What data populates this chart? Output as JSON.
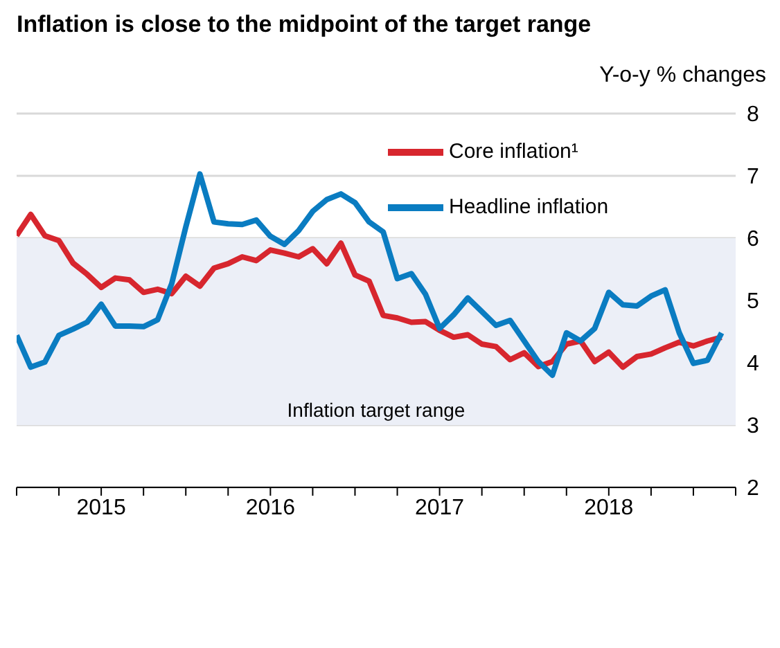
{
  "chart_data": {
    "type": "line",
    "title": "Inflation is close to the midpoint of the target range",
    "ylabel": "Y-o-y % changes",
    "x": [
      "2015-01",
      "2015-02",
      "2015-03",
      "2015-04",
      "2015-05",
      "2015-06",
      "2015-07",
      "2015-08",
      "2015-09",
      "2015-10",
      "2015-11",
      "2015-12",
      "2016-01",
      "2016-02",
      "2016-03",
      "2016-04",
      "2016-05",
      "2016-06",
      "2016-07",
      "2016-08",
      "2016-09",
      "2016-10",
      "2016-11",
      "2016-12",
      "2017-01",
      "2017-02",
      "2017-03",
      "2017-04",
      "2017-05",
      "2017-06",
      "2017-07",
      "2017-08",
      "2017-09",
      "2017-10",
      "2017-11",
      "2017-12",
      "2018-01",
      "2018-02",
      "2018-03",
      "2018-04",
      "2018-05",
      "2018-06",
      "2018-07",
      "2018-08",
      "2018-09",
      "2018-10",
      "2018-11",
      "2018-12",
      "2019-01",
      "2019-02",
      "2019-03"
    ],
    "series": [
      {
        "name": "Core inflation¹",
        "color": "#d7262e",
        "values": [
          6.04,
          6.38,
          6.04,
          5.96,
          5.6,
          5.42,
          5.21,
          5.36,
          5.33,
          5.13,
          5.18,
          5.11,
          5.39,
          5.23,
          5.52,
          5.59,
          5.7,
          5.64,
          5.81,
          5.76,
          5.7,
          5.83,
          5.59,
          5.92,
          5.41,
          5.31,
          4.76,
          4.72,
          4.65,
          4.66,
          4.52,
          4.41,
          4.45,
          4.3,
          4.26,
          4.05,
          4.16,
          3.94,
          4.02,
          4.3,
          4.35,
          4.02,
          4.17,
          3.93,
          4.1,
          4.14,
          4.24,
          4.33,
          4.27,
          4.35,
          4.41
        ]
      },
      {
        "name": "Headline inflation",
        "color": "#0a7cc1",
        "values": [
          4.44,
          3.93,
          4.01,
          4.44,
          4.54,
          4.65,
          4.94,
          4.59,
          4.59,
          4.58,
          4.69,
          5.27,
          6.18,
          7.03,
          6.26,
          6.23,
          6.22,
          6.29,
          6.03,
          5.9,
          6.12,
          6.43,
          6.62,
          6.71,
          6.57,
          6.26,
          6.1,
          5.35,
          5.43,
          5.1,
          4.55,
          4.77,
          5.04,
          4.82,
          4.6,
          4.68,
          4.35,
          4.02,
          3.8,
          4.48,
          4.35,
          4.55,
          5.13,
          4.93,
          4.91,
          5.07,
          5.17,
          4.48,
          3.99,
          4.04,
          4.48
        ]
      }
    ],
    "xlim": [
      "2015-01",
      "2019-04"
    ],
    "xticks": [
      {
        "value": "2015-01",
        "label": null
      },
      {
        "value": "2015-04",
        "label": null
      },
      {
        "value": "2015-07",
        "label": "2015"
      },
      {
        "value": "2015-10",
        "label": null
      },
      {
        "value": "2016-01",
        "label": null
      },
      {
        "value": "2016-04",
        "label": null
      },
      {
        "value": "2016-07",
        "label": "2016"
      },
      {
        "value": "2016-10",
        "label": null
      },
      {
        "value": "2017-01",
        "label": null
      },
      {
        "value": "2017-04",
        "label": null
      },
      {
        "value": "2017-07",
        "label": "2017"
      },
      {
        "value": "2017-10",
        "label": null
      },
      {
        "value": "2018-01",
        "label": null
      },
      {
        "value": "2018-04",
        "label": null
      },
      {
        "value": "2018-07",
        "label": "2018"
      },
      {
        "value": "2018-10",
        "label": null
      },
      {
        "value": "2019-01",
        "label": null
      },
      {
        "value": "2019-04",
        "label": null
      }
    ],
    "ylim": [
      2,
      8
    ],
    "yticks": [
      2,
      3,
      4,
      5,
      6,
      7,
      8
    ],
    "bands": [
      {
        "axis": "y",
        "from": 3,
        "to": 6,
        "label": "Inflation target range",
        "color": "#eceff7"
      }
    ],
    "grid": "y",
    "legend": "top",
    "marker": "none",
    "line_style": "solid"
  }
}
